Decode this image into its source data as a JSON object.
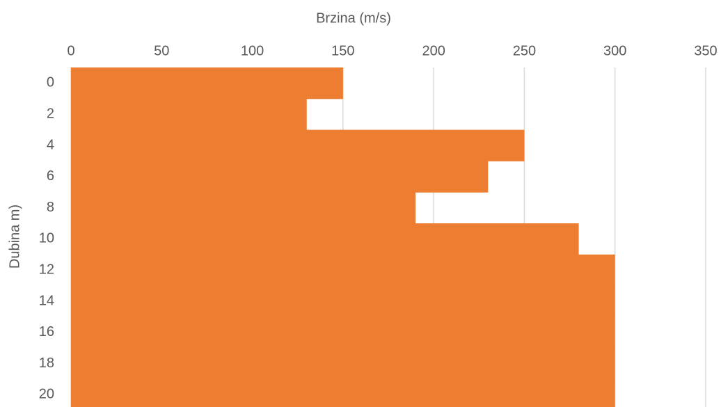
{
  "chart_data": {
    "type": "bar",
    "orientation": "horizontal",
    "title": "Brzina (m/s)",
    "y_label": "Dubina m)",
    "categories": [
      "0",
      "2",
      "4",
      "6",
      "8",
      "10",
      "12",
      "14",
      "16",
      "18",
      "20"
    ],
    "values": [
      150,
      130,
      250,
      230,
      190,
      280,
      300,
      300,
      300,
      300,
      300
    ],
    "color": "#ed7d31",
    "xlim": [
      0,
      350
    ],
    "xticks": [
      0,
      50,
      100,
      150,
      200,
      250,
      300,
      350
    ],
    "grid": true
  }
}
